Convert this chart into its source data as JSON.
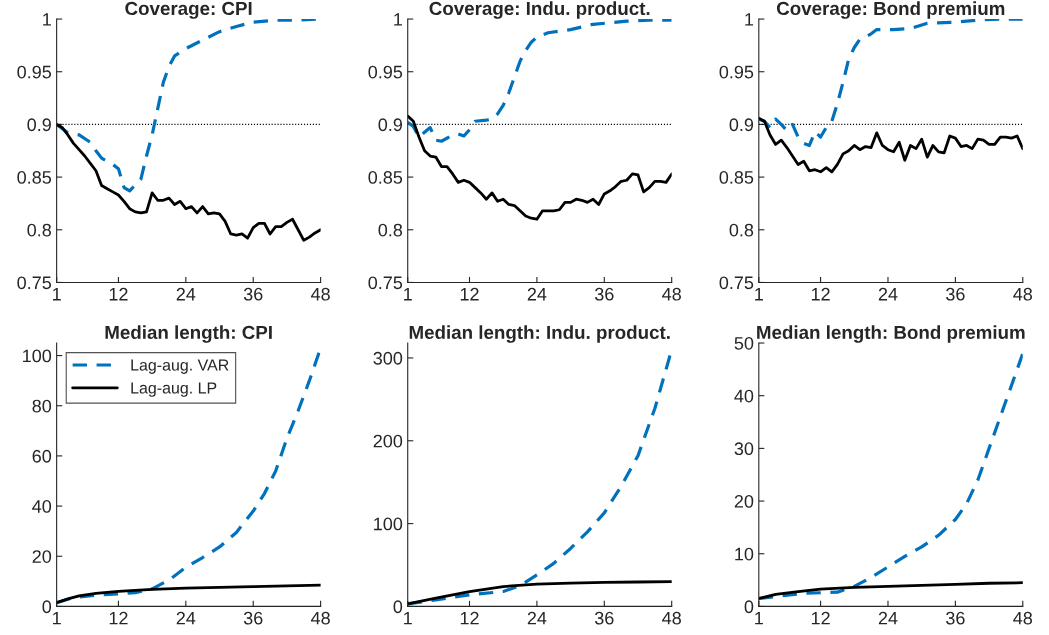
{
  "chart_data": [
    {
      "type": "line",
      "title": "Coverage: CPI",
      "xlim": [
        1,
        48
      ],
      "xticks": [
        1,
        12,
        24,
        36,
        48
      ],
      "ylim": [
        0.75,
        1
      ],
      "yticks": [
        0.75,
        0.8,
        0.85,
        0.9,
        0.95,
        1
      ],
      "legend": false,
      "ref_lines": [
        {
          "axis": "y",
          "value": 0.9,
          "color": "#000000",
          "line_style": "dotted"
        }
      ],
      "series": [
        {
          "color": "#0072bd",
          "line_style": "dashed",
          "x": [
            1,
            3,
            5,
            7,
            8,
            9,
            11,
            12,
            13,
            14,
            16,
            17,
            18,
            19,
            20,
            21,
            22,
            24,
            27,
            30,
            33,
            36,
            40,
            44,
            48
          ],
          "values": [
            0.9,
            0.892,
            0.89,
            0.883,
            0.875,
            0.868,
            0.862,
            0.858,
            0.84,
            0.837,
            0.848,
            0.87,
            0.89,
            0.915,
            0.94,
            0.955,
            0.965,
            0.972,
            0.98,
            0.988,
            0.993,
            0.997,
            0.999,
            0.999,
            1.0
          ]
        },
        {
          "color": "#000000",
          "line_style": "solid",
          "x": [
            1,
            2,
            3,
            4,
            5,
            6,
            7,
            8,
            9,
            10,
            11,
            12,
            13,
            14,
            15,
            16,
            17,
            18,
            19,
            20,
            21,
            22,
            23,
            24,
            25,
            26,
            27,
            28,
            29,
            30,
            31,
            32,
            33,
            34,
            35,
            36,
            37,
            38,
            39,
            40,
            41,
            42,
            43,
            44,
            45,
            46,
            47,
            48
          ],
          "values": [
            0.9,
            0.897,
            0.89,
            0.882,
            0.876,
            0.87,
            0.863,
            0.856,
            0.842,
            0.839,
            0.836,
            0.833,
            0.827,
            0.82,
            0.817,
            0.816,
            0.817,
            0.835,
            0.828,
            0.828,
            0.83,
            0.824,
            0.827,
            0.82,
            0.822,
            0.816,
            0.822,
            0.815,
            0.816,
            0.815,
            0.808,
            0.796,
            0.795,
            0.796,
            0.792,
            0.802,
            0.806,
            0.806,
            0.796,
            0.803,
            0.803,
            0.807,
            0.81,
            0.8,
            0.79,
            0.793,
            0.797,
            0.8
          ]
        }
      ]
    },
    {
      "type": "line",
      "title": "Coverage: Indu. product.",
      "xlim": [
        1,
        48
      ],
      "xticks": [
        1,
        12,
        24,
        36,
        48
      ],
      "ylim": [
        0.75,
        1
      ],
      "yticks": [
        0.75,
        0.8,
        0.85,
        0.9,
        0.95,
        1
      ],
      "legend": false,
      "ref_lines": [
        {
          "axis": "y",
          "value": 0.9,
          "color": "#000000",
          "line_style": "dotted"
        }
      ],
      "series": [
        {
          "color": "#0072bd",
          "line_style": "dashed",
          "x": [
            1,
            2,
            3,
            5,
            6,
            7,
            9,
            10,
            11,
            12,
            13,
            15,
            16,
            17,
            18,
            19,
            20,
            21,
            22,
            23,
            24,
            26,
            30,
            34,
            40,
            44,
            48
          ],
          "values": [
            0.902,
            0.898,
            0.888,
            0.897,
            0.885,
            0.884,
            0.89,
            0.891,
            0.889,
            0.895,
            0.903,
            0.904,
            0.905,
            0.91,
            0.918,
            0.93,
            0.945,
            0.96,
            0.97,
            0.978,
            0.983,
            0.987,
            0.99,
            0.995,
            0.998,
            0.999,
            0.999
          ]
        },
        {
          "color": "#000000",
          "line_style": "solid",
          "x": [
            1,
            2,
            3,
            4,
            5,
            6,
            7,
            8,
            9,
            10,
            11,
            12,
            13,
            14,
            15,
            16,
            17,
            18,
            19,
            20,
            21,
            22,
            23,
            24,
            25,
            26,
            27,
            28,
            29,
            30,
            31,
            32,
            33,
            34,
            35,
            36,
            37,
            38,
            39,
            40,
            41,
            42,
            43,
            44,
            45,
            46,
            47,
            48
          ],
          "values": [
            0.908,
            0.903,
            0.888,
            0.875,
            0.87,
            0.869,
            0.86,
            0.86,
            0.853,
            0.845,
            0.847,
            0.845,
            0.84,
            0.835,
            0.829,
            0.835,
            0.827,
            0.829,
            0.824,
            0.823,
            0.818,
            0.813,
            0.811,
            0.81,
            0.818,
            0.818,
            0.818,
            0.819,
            0.826,
            0.826,
            0.829,
            0.828,
            0.826,
            0.829,
            0.824,
            0.834,
            0.837,
            0.841,
            0.846,
            0.847,
            0.853,
            0.852,
            0.836,
            0.84,
            0.846,
            0.846,
            0.845,
            0.853
          ]
        }
      ]
    },
    {
      "type": "line",
      "title": "Coverage: Bond premium",
      "xlim": [
        1,
        48
      ],
      "xticks": [
        1,
        12,
        24,
        36,
        48
      ],
      "ylim": [
        0.75,
        1
      ],
      "yticks": [
        0.75,
        0.8,
        0.85,
        0.9,
        0.95,
        1
      ],
      "legend": false,
      "ref_lines": [
        {
          "axis": "y",
          "value": 0.9,
          "color": "#000000",
          "line_style": "dotted"
        }
      ],
      "series": [
        {
          "color": "#0072bd",
          "line_style": "dashed",
          "x": [
            1,
            2,
            3,
            4,
            5,
            6,
            7,
            8,
            9,
            10,
            11,
            12,
            13,
            14,
            15,
            16,
            17,
            18,
            19,
            20,
            21,
            22,
            25,
            28,
            31,
            36,
            40,
            44,
            48
          ],
          "values": [
            0.905,
            0.903,
            0.897,
            0.905,
            0.9,
            0.894,
            0.9,
            0.888,
            0.882,
            0.88,
            0.893,
            0.888,
            0.897,
            0.903,
            0.92,
            0.94,
            0.962,
            0.973,
            0.981,
            0.983,
            0.986,
            0.99,
            0.99,
            0.991,
            0.996,
            0.997,
            0.999,
            1.0,
            1.0
          ]
        },
        {
          "color": "#000000",
          "line_style": "solid",
          "x": [
            1,
            2,
            3,
            4,
            5,
            6,
            7,
            8,
            9,
            10,
            11,
            12,
            13,
            14,
            15,
            16,
            17,
            18,
            19,
            20,
            21,
            22,
            23,
            24,
            25,
            26,
            27,
            28,
            29,
            30,
            31,
            32,
            33,
            34,
            35,
            36,
            37,
            38,
            39,
            40,
            41,
            42,
            43,
            44,
            45,
            46,
            47,
            48
          ],
          "values": [
            0.906,
            0.903,
            0.89,
            0.881,
            0.885,
            0.878,
            0.87,
            0.862,
            0.865,
            0.856,
            0.857,
            0.855,
            0.859,
            0.855,
            0.862,
            0.872,
            0.875,
            0.88,
            0.876,
            0.879,
            0.878,
            0.892,
            0.88,
            0.876,
            0.874,
            0.883,
            0.866,
            0.88,
            0.877,
            0.886,
            0.869,
            0.88,
            0.874,
            0.873,
            0.889,
            0.887,
            0.879,
            0.88,
            0.877,
            0.886,
            0.885,
            0.881,
            0.881,
            0.888,
            0.888,
            0.887,
            0.889,
            0.877
          ]
        }
      ]
    },
    {
      "type": "line",
      "title": "Median length: CPI",
      "xlim": [
        1,
        48
      ],
      "xticks": [
        1,
        12,
        24,
        36,
        48
      ],
      "ylim": [
        0,
        105
      ],
      "yticks": [
        0,
        20,
        40,
        60,
        80,
        100
      ],
      "legend": "top left",
      "series": [
        {
          "name": "Lag-aug. VAR",
          "color": "#0072bd",
          "line_style": "dashed",
          "x": [
            1,
            4,
            8,
            12,
            15,
            18,
            21,
            24,
            27,
            30,
            33,
            36,
            38,
            40,
            42,
            44,
            46,
            48
          ],
          "values": [
            1.5,
            3.5,
            4.5,
            5,
            5.5,
            7,
            10.5,
            15.6,
            19.5,
            23.7,
            29.5,
            38,
            45,
            54,
            67,
            78,
            90,
            103
          ]
        },
        {
          "name": "Lag-aug. LP",
          "color": "#000000",
          "line_style": "solid",
          "x": [
            1,
            3,
            5,
            8,
            12,
            18,
            24,
            30,
            36,
            42,
            48
          ],
          "values": [
            1.5,
            3,
            4.2,
            5.2,
            6,
            6.8,
            7.3,
            7.6,
            7.9,
            8.2,
            8.5
          ]
        }
      ]
    },
    {
      "type": "line",
      "title": "Median length: Indu. product.",
      "xlim": [
        1,
        48
      ],
      "xticks": [
        1,
        12,
        24,
        36,
        48
      ],
      "ylim": [
        0,
        318
      ],
      "yticks": [
        0,
        100,
        200,
        300
      ],
      "legend": false,
      "series": [
        {
          "color": "#0072bd",
          "line_style": "dashed",
          "x": [
            1,
            6,
            12,
            18,
            21,
            24,
            27,
            30,
            33,
            36,
            39,
            42,
            45,
            48
          ],
          "values": [
            3,
            8,
            14,
            18,
            25,
            38,
            52,
            70,
            90,
            113,
            145,
            182,
            239,
            310
          ]
        },
        {
          "color": "#000000",
          "line_style": "solid",
          "x": [
            1,
            6,
            12,
            18,
            24,
            30,
            36,
            42,
            48
          ],
          "values": [
            3,
            10,
            18,
            24,
            27,
            28,
            29,
            29.5,
            30
          ]
        }
      ]
    },
    {
      "type": "line",
      "title": "Median length: Bond premium",
      "xlim": [
        1,
        48
      ],
      "xticks": [
        1,
        12,
        24,
        36,
        48
      ],
      "ylim": [
        0,
        50
      ],
      "yticks": [
        0,
        10,
        20,
        30,
        40,
        50
      ],
      "legend": false,
      "series": [
        {
          "color": "#0072bd",
          "line_style": "dashed",
          "x": [
            1,
            5,
            9,
            12,
            15,
            18,
            21,
            24,
            27,
            30,
            33,
            36,
            38,
            40,
            42,
            44,
            46,
            48
          ],
          "values": [
            1.5,
            2,
            2.5,
            2.6,
            2.7,
            3.8,
            5.5,
            7.5,
            9.5,
            11.3,
            13.5,
            16.5,
            19.5,
            24,
            30,
            36,
            42,
            48
          ]
        },
        {
          "color": "#000000",
          "line_style": "solid",
          "x": [
            1,
            4,
            8,
            12,
            18,
            24,
            30,
            36,
            42,
            48
          ],
          "values": [
            1.5,
            2.3,
            2.8,
            3.3,
            3.6,
            3.8,
            4,
            4.2,
            4.4,
            4.5
          ]
        }
      ]
    }
  ]
}
